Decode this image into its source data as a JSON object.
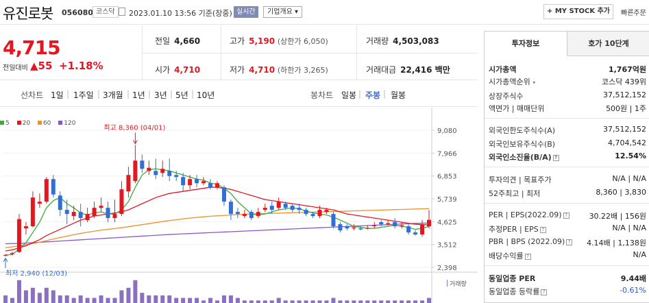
{
  "header": {
    "stock_name": "유진로봇",
    "stock_code": "056080",
    "market_badge": "코스닥",
    "datetime": "2023.01.10 13:56 기준(장중)",
    "live_badge": "실시간",
    "overview_button": "기업개요 ▾",
    "mystock_button": "+ MY STOCK 추가",
    "quick_order": "빠른주문"
  },
  "summary": {
    "price": "4,715",
    "diff_label": "전일대비",
    "diff": "▲55",
    "rate": "+1.18%",
    "prev_close_label": "전일",
    "prev_close": "4,660",
    "high_label": "고가",
    "high": "5,190",
    "upper_limit": "(상한가 6,050)",
    "volume_label": "거래량",
    "volume": "4,503,083",
    "open_label": "시가",
    "open": "4,710",
    "low_label": "저가",
    "low": "4,710",
    "lower_limit": "(하한가 3,265)",
    "amount_label": "거래대금",
    "amount": "22,416 백만"
  },
  "periods": {
    "line_label": "선차트",
    "items": [
      "1일",
      "1주일",
      "3개월",
      "1년",
      "3년",
      "5년",
      "10년"
    ],
    "candle_label": "봉차트",
    "candle_items": [
      "일봉",
      "주봉",
      "월봉"
    ],
    "candle_active": "주봉"
  },
  "legend": {
    "ma5": "5",
    "ma20": "20",
    "ma60": "60",
    "ma120": "120",
    "ma5_color": "#3caa3c",
    "ma20_color": "#e4161f",
    "ma60_color": "#f0902a",
    "ma120_color": "#8b55c8",
    "volume_label": "거래량"
  },
  "chart_data": {
    "type": "candlestick",
    "y_ticks": [
      "9,080",
      "7,966",
      "6,853",
      "5,739",
      "4,625",
      "3,512",
      "2,398"
    ],
    "ylim": [
      2398,
      9080
    ],
    "max_annotation": "최고 8,360 (04/01)",
    "min_annotation": "최저 2,940 (12/03)",
    "up_color": "#e4161f",
    "down_color": "#2f6fd6",
    "candles": [
      {
        "o": 3000,
        "c": 3000,
        "h": 3050,
        "l": 2940
      },
      {
        "o": 3050,
        "c": 3100,
        "h": 3150,
        "l": 2980
      },
      {
        "o": 3150,
        "c": 4750,
        "h": 5000,
        "l": 3100
      },
      {
        "o": 4300,
        "c": 4400,
        "h": 4600,
        "l": 4000
      },
      {
        "o": 4400,
        "c": 5800,
        "h": 6100,
        "l": 4350
      },
      {
        "o": 5500,
        "c": 5600,
        "h": 6000,
        "l": 5300
      },
      {
        "o": 5600,
        "c": 6700,
        "h": 6800,
        "l": 5500
      },
      {
        "o": 6700,
        "c": 5950,
        "h": 6900,
        "l": 5800
      },
      {
        "o": 5900,
        "c": 5200,
        "h": 6100,
        "l": 4900
      },
      {
        "o": 5200,
        "c": 5000,
        "h": 5700,
        "l": 4500
      },
      {
        "o": 4900,
        "c": 5100,
        "h": 5400,
        "l": 4700
      },
      {
        "o": 5100,
        "c": 4800,
        "h": 5500,
        "l": 4400
      },
      {
        "o": 4700,
        "c": 5000,
        "h": 5300,
        "l": 4600
      },
      {
        "o": 4900,
        "c": 5300,
        "h": 5600,
        "l": 4800
      },
      {
        "o": 5300,
        "c": 5400,
        "h": 5800,
        "l": 5100
      },
      {
        "o": 5300,
        "c": 4800,
        "h": 5600,
        "l": 4600
      },
      {
        "o": 4800,
        "c": 5000,
        "h": 5700,
        "l": 4600
      },
      {
        "o": 5000,
        "c": 6200,
        "h": 6600,
        "l": 4900
      },
      {
        "o": 6100,
        "c": 6900,
        "h": 7300,
        "l": 5800
      },
      {
        "o": 6600,
        "c": 7600,
        "h": 8360,
        "l": 6500
      },
      {
        "o": 7600,
        "c": 7200,
        "h": 7900,
        "l": 7000
      },
      {
        "o": 7100,
        "c": 7250,
        "h": 7600,
        "l": 6900
      },
      {
        "o": 7100,
        "c": 6900,
        "h": 7700,
        "l": 6700
      },
      {
        "o": 7000,
        "c": 7200,
        "h": 7600,
        "l": 6800
      },
      {
        "o": 7100,
        "c": 6850,
        "h": 7700,
        "l": 6600
      },
      {
        "o": 6900,
        "c": 6800,
        "h": 7100,
        "l": 6600
      },
      {
        "o": 6800,
        "c": 6400,
        "h": 7000,
        "l": 6100
      },
      {
        "o": 6400,
        "c": 6700,
        "h": 6900,
        "l": 6200
      },
      {
        "o": 6700,
        "c": 6500,
        "h": 6900,
        "l": 6300
      },
      {
        "o": 6500,
        "c": 6600,
        "h": 6800,
        "l": 6400
      },
      {
        "o": 6500,
        "c": 6300,
        "h": 6700,
        "l": 6200
      },
      {
        "o": 6300,
        "c": 6500,
        "h": 6600,
        "l": 6200
      },
      {
        "o": 6300,
        "c": 5600,
        "h": 6400,
        "l": 5400
      },
      {
        "o": 5600,
        "c": 5000,
        "h": 5700,
        "l": 4700
      },
      {
        "o": 5100,
        "c": 5000,
        "h": 5300,
        "l": 4800
      },
      {
        "o": 4900,
        "c": 5000,
        "h": 5200,
        "l": 4800
      },
      {
        "o": 5100,
        "c": 4800,
        "h": 5200,
        "l": 4700
      },
      {
        "o": 4900,
        "c": 5100,
        "h": 5300,
        "l": 4800
      },
      {
        "o": 5200,
        "c": 5300,
        "h": 5500,
        "l": 5100
      },
      {
        "o": 5400,
        "c": 5200,
        "h": 5600,
        "l": 5000
      },
      {
        "o": 5300,
        "c": 5600,
        "h": 5800,
        "l": 5200
      },
      {
        "o": 5500,
        "c": 5300,
        "h": 5600,
        "l": 5200
      },
      {
        "o": 5400,
        "c": 5200,
        "h": 5500,
        "l": 5100
      },
      {
        "o": 5300,
        "c": 5200,
        "h": 5500,
        "l": 5000
      },
      {
        "o": 5200,
        "c": 5000,
        "h": 5300,
        "l": 4900
      },
      {
        "o": 5000,
        "c": 4900,
        "h": 5100,
        "l": 4800
      },
      {
        "o": 4900,
        "c": 5200,
        "h": 5400,
        "l": 4800
      },
      {
        "o": 5100,
        "c": 5200,
        "h": 5300,
        "l": 5000
      },
      {
        "o": 5000,
        "c": 4400,
        "h": 5100,
        "l": 4300
      },
      {
        "o": 4500,
        "c": 4200,
        "h": 4600,
        "l": 4100
      },
      {
        "o": 4400,
        "c": 4300,
        "h": 4500,
        "l": 4200
      },
      {
        "o": 4300,
        "c": 4350,
        "h": 4500,
        "l": 4200
      },
      {
        "o": 4300,
        "c": 4250,
        "h": 4400,
        "l": 4200
      },
      {
        "o": 4300,
        "c": 4310,
        "h": 4450,
        "l": 4250
      },
      {
        "o": 4400,
        "c": 4450,
        "h": 4600,
        "l": 4300
      },
      {
        "o": 4600,
        "c": 4500,
        "h": 4700,
        "l": 4400
      },
      {
        "o": 4500,
        "c": 4550,
        "h": 4700,
        "l": 4450
      },
      {
        "o": 4600,
        "c": 4400,
        "h": 4800,
        "l": 4300
      },
      {
        "o": 4400,
        "c": 4450,
        "h": 4600,
        "l": 4300
      },
      {
        "o": 4400,
        "c": 4100,
        "h": 4500,
        "l": 4000
      },
      {
        "o": 4100,
        "c": 4000,
        "h": 4200,
        "l": 3950
      },
      {
        "o": 4000,
        "c": 4500,
        "h": 4700,
        "l": 3900
      },
      {
        "o": 4400,
        "c": 4715,
        "h": 5190,
        "l": 4300
      }
    ],
    "ma5": [
      3000,
      3020,
      3300,
      3600,
      4100,
      4600,
      5300,
      5650,
      5800,
      5500,
      5300,
      5050,
      4950,
      5050,
      5100,
      5000,
      5000,
      5200,
      5600,
      6300,
      6900,
      7150,
      7200,
      7150,
      7100,
      7000,
      6900,
      6800,
      6700,
      6650,
      6500,
      6450,
      6250,
      6000,
      5600,
      5300,
      5000,
      4950,
      5000,
      5100,
      5200,
      5250,
      5300,
      5250,
      5150,
      5050,
      5000,
      4950,
      4850,
      4700,
      4550,
      4400,
      4350,
      4300,
      4300,
      4350,
      4400,
      4450,
      4400,
      4350,
      4250,
      4300,
      4400
    ],
    "ma20": [
      3200,
      3250,
      3350,
      3450,
      3600,
      3750,
      3950,
      4100,
      4250,
      4400,
      4550,
      4700,
      4800,
      4900,
      4950,
      5000,
      5050,
      5100,
      5200,
      5350,
      5500,
      5650,
      5800,
      5900,
      6000,
      6050,
      6100,
      6150,
      6200,
      6250,
      6300,
      6300,
      6250,
      6200,
      6100,
      6000,
      5900,
      5800,
      5700,
      5650,
      5600,
      5550,
      5500,
      5450,
      5400,
      5350,
      5300,
      5250,
      5200,
      5100,
      5000,
      4950,
      4900,
      4850,
      4800,
      4750,
      4700,
      4650,
      4600,
      4550,
      4500,
      4480,
      4470
    ],
    "ma60": [
      3350,
      3400,
      3450,
      3500,
      3560,
      3620,
      3700,
      3780,
      3850,
      3920,
      3990,
      4050,
      4110,
      4160,
      4210,
      4250,
      4290,
      4330,
      4380,
      4430,
      4480,
      4530,
      4580,
      4630,
      4680,
      4720,
      4760,
      4800,
      4830,
      4860,
      4890,
      4910,
      4930,
      4950,
      4970,
      4990,
      5000,
      5010,
      5020,
      5030,
      5040,
      5050,
      5060,
      5070,
      5080,
      5090,
      5100,
      5110,
      5120,
      5130,
      5140,
      5150,
      5160,
      5170,
      5180,
      5190,
      5200,
      5210,
      5220,
      5230,
      5240,
      5250,
      5260
    ],
    "ma120": [
      3550,
      3560,
      3570,
      3580,
      3600,
      3620,
      3640,
      3660,
      3680,
      3700,
      3720,
      3740,
      3760,
      3780,
      3800,
      3820,
      3840,
      3860,
      3880,
      3900,
      3920,
      3940,
      3960,
      3980,
      4000,
      4015,
      4030,
      4045,
      4060,
      4075,
      4090,
      4105,
      4120,
      4135,
      4150,
      4165,
      4180,
      4195,
      4210,
      4225,
      4240,
      4255,
      4270,
      4285,
      4300,
      4315,
      4330,
      4345,
      4360,
      4375,
      4390,
      4405,
      4420,
      4435,
      4450,
      4465,
      4480,
      4495,
      4510,
      4525,
      4540,
      4550,
      4560
    ],
    "volumes": [
      0.3,
      0.2,
      0.9,
      0.5,
      0.6,
      0.4,
      0.6,
      0.5,
      0.3,
      0.3,
      0.2,
      0.3,
      0.2,
      0.2,
      0.3,
      0.2,
      0.2,
      0.5,
      0.6,
      0.9,
      0.4,
      0.3,
      0.3,
      0.3,
      0.3,
      0.2,
      0.2,
      0.2,
      0.2,
      0.1,
      0.2,
      0.1,
      0.3,
      0.3,
      0.2,
      0.1,
      0.1,
      0.1,
      0.1,
      0.1,
      0.2,
      0.1,
      0.1,
      0.1,
      0.1,
      0.1,
      0.1,
      0.1,
      0.2,
      0.1,
      0.1,
      0.1,
      0.1,
      0.1,
      0.1,
      0.1,
      0.1,
      0.1,
      0.1,
      0.1,
      0.1,
      0.1,
      0.2
    ]
  },
  "side": {
    "tab_active": "투자정보",
    "tab_other": "호가 10단계",
    "market_cap_label": "시가총액",
    "market_cap": "1,767억원",
    "cap_rank_label": "시가총액순위",
    "cap_rank": "코스닥 439위",
    "shares_label": "상장주식수",
    "shares": "37,512,152",
    "par_label": "액면가 | 매매단위",
    "par": "500원 | 1주",
    "foreign_limit_label": "외국인한도주식수(A)",
    "foreign_limit": "37,512,152",
    "foreign_hold_label": "외국인보유주식수(B)",
    "foreign_hold": "4,704,542",
    "foreign_rate_label": "외국인소진율(B/A)",
    "foreign_rate": "12.54%",
    "opinion_label": "투자의견 | 목표주가",
    "opinion": "N/A | N/A",
    "week52_label": "52주최고 | 최저",
    "week52": "8,360 | 3,830",
    "per_label": "PER | EPS(2022.09)",
    "per": "30.22배 | 156원",
    "est_per_label": "추정PER | EPS",
    "est_per": "N/A | N/A",
    "pbr_label": "PBR | BPS (2022.09)",
    "pbr": "4.14배 | 1,138원",
    "dividend_label": "배당수익률",
    "dividend": "N/A",
    "sector_per_label": "동일업종 PER",
    "sector_per": "9.44배",
    "sector_rate_label": "동일업종 등락률",
    "sector_rate": "-0.61%"
  }
}
